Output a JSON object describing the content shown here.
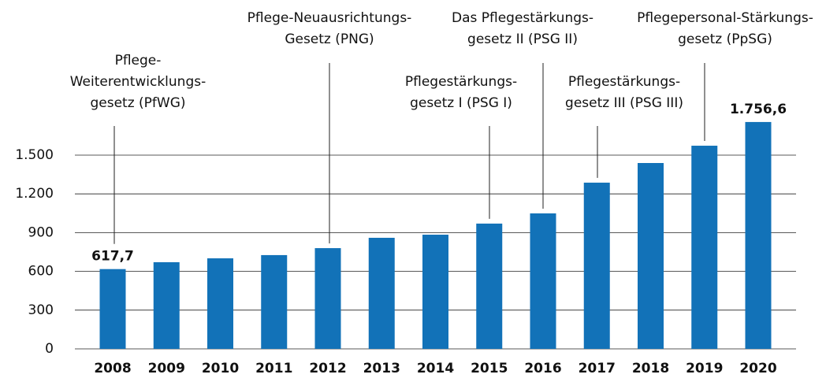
{
  "chart_data": {
    "type": "bar",
    "categories": [
      "2008",
      "2009",
      "2010",
      "2011",
      "2012",
      "2013",
      "2014",
      "2015",
      "2016",
      "2017",
      "2018",
      "2019",
      "2020"
    ],
    "values": [
      617.7,
      671,
      701,
      726,
      780,
      860,
      884,
      970,
      1049,
      1287,
      1439,
      1573,
      1756.6
    ],
    "value_labels": [
      "617,7",
      null,
      null,
      null,
      null,
      null,
      null,
      null,
      null,
      null,
      null,
      null,
      "1.756,6"
    ],
    "color": "#1272b8",
    "ylim": [
      0,
      1800
    ],
    "yticks": [
      0,
      300,
      600,
      900,
      {
        "value": 1200,
        "label": "1.200"
      },
      {
        "value": 1500,
        "label": "1.500"
      }
    ],
    "grid": true,
    "annotations": [
      {
        "category": "2008",
        "lines": [
          "Pflege-",
          "Weiterentwicklungs-",
          "gesetz (PfWG)"
        ]
      },
      {
        "category": "2012",
        "lines": [
          "Pflege-Neuausrichtungs-",
          "Gesetz (PNG)"
        ]
      },
      {
        "category": "2015",
        "lines": [
          "Pflegestärkungs-",
          "gesetz I (PSG I)"
        ]
      },
      {
        "category": "2016",
        "lines": [
          "Das Pflegestärkungs-",
          "gesetz II (PSG II)"
        ]
      },
      {
        "category": "2017",
        "lines": [
          "Pflegestärkungs-",
          "gesetz III (PSG III)"
        ]
      },
      {
        "category": "2019",
        "lines": [
          "Pflegepersonal-Stärkungs-",
          "gesetz (PpSG)"
        ]
      }
    ]
  }
}
